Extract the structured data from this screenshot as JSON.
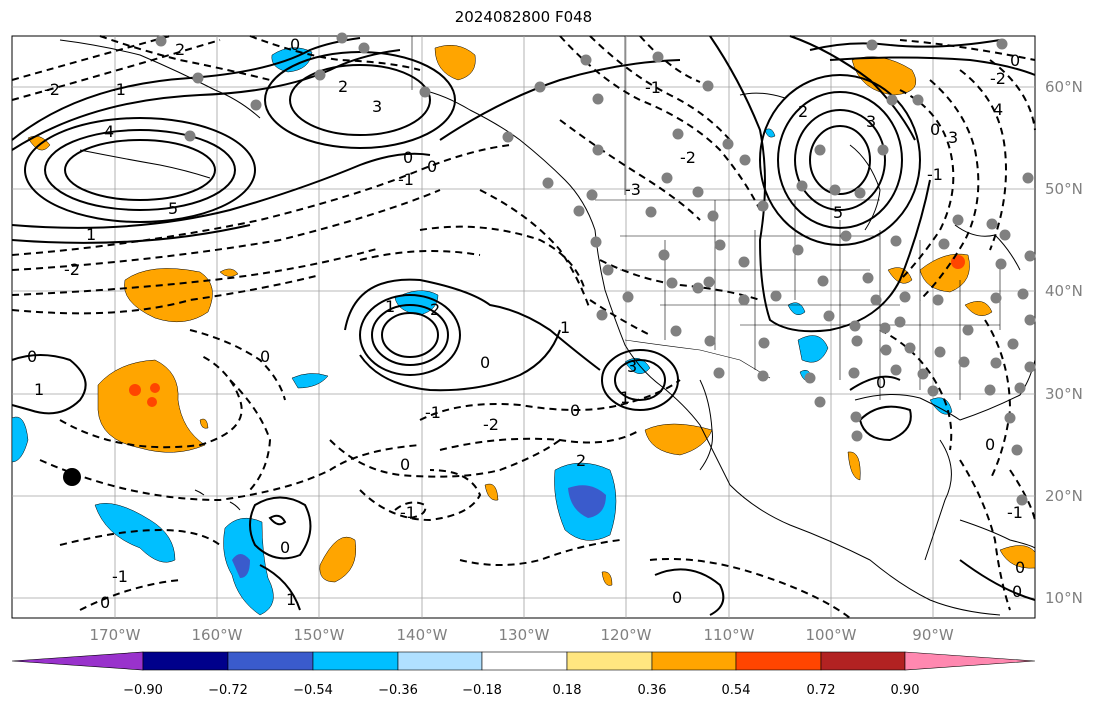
{
  "map": {
    "title": "2024082800 F048",
    "lat_labels": [
      "60°N",
      "50°N",
      "40°N",
      "30°N",
      "20°N",
      "10°N"
    ],
    "lon_labels": [
      "170°W",
      "160°W",
      "150°W",
      "140°W",
      "130°W",
      "120°W",
      "110°W",
      "100°W",
      "90°W"
    ],
    "contour_labels": [
      "-2",
      "-1",
      "0",
      "1",
      "2",
      "3",
      "4",
      "5",
      "-3"
    ],
    "features": [
      "geopotential-height-anomaly-contours",
      "precipitation-anomaly-shading",
      "station-markers",
      "coastlines",
      "state-borders"
    ]
  },
  "colorbar": {
    "tick_labels": [
      "−0.90",
      "−0.72",
      "−0.54",
      "−0.36",
      "−0.18",
      "0.18",
      "0.36",
      "0.54",
      "0.72",
      "0.90"
    ],
    "colors": [
      "#9932cc",
      "#00008b",
      "#3a5bcc",
      "#00bfff",
      "#b0e0ff",
      "#ffffff",
      "#ffe680",
      "#ffa500",
      "#ff4500",
      "#b22222",
      "#ff88b0"
    ]
  },
  "colors": {
    "positive_fill": "#ffa500",
    "negative_fill": "#00bfff",
    "contour": "#000000",
    "grid": "#a0a0a0",
    "station_dot": "#808080"
  }
}
